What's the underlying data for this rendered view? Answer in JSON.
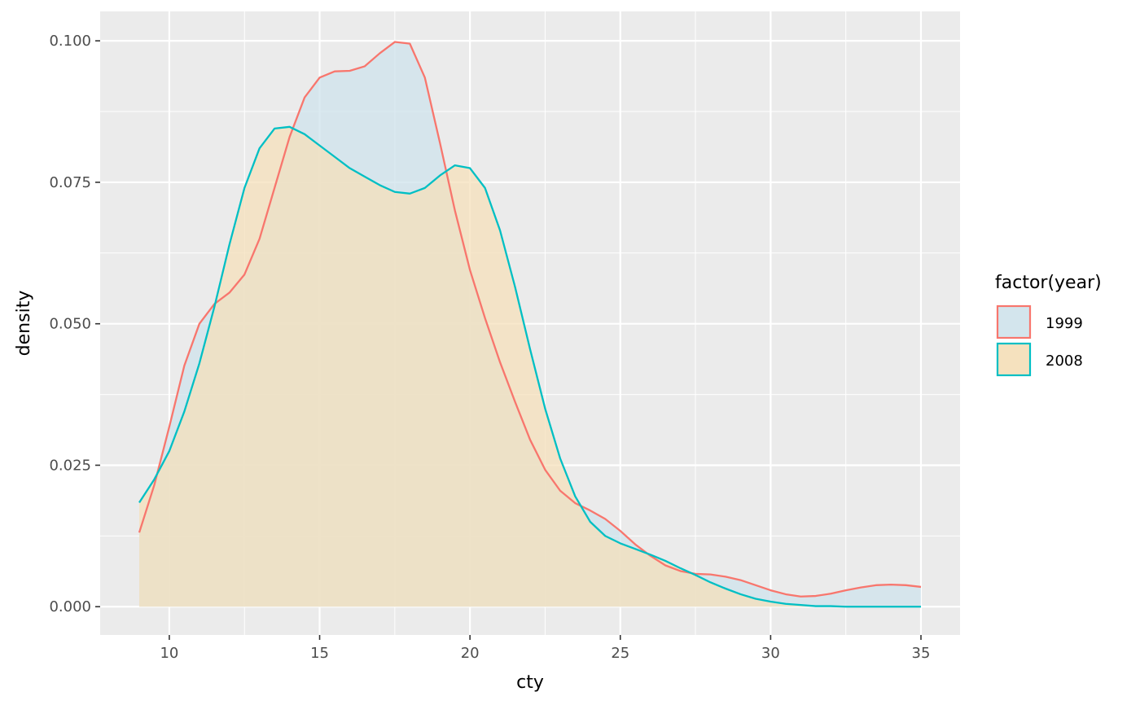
{
  "chart_data": {
    "type": "area",
    "chart_kind": "density",
    "title": "",
    "xlabel": "cty",
    "ylabel": "density",
    "xlim": [
      7.7,
      36.3
    ],
    "ylim": [
      -0.005,
      0.1052
    ],
    "x_ticks": [
      10,
      15,
      20,
      25,
      30,
      35
    ],
    "x_tick_labels": [
      "10",
      "15",
      "20",
      "25",
      "30",
      "35"
    ],
    "y_ticks": [
      0,
      0.025,
      0.05,
      0.075,
      0.1
    ],
    "y_tick_labels": [
      "0.000",
      "0.025",
      "0.050",
      "0.075",
      "0.100"
    ],
    "grid": true,
    "panel_background": "#EBEBEB",
    "legend": {
      "title": "factor(year)",
      "position": "right"
    },
    "series": [
      {
        "name": "1999",
        "line_color": "#F8766D",
        "fill_color": "#CFE3EC",
        "points": [
          [
            9.0,
            0.0131
          ],
          [
            9.5,
            0.0215
          ],
          [
            10.0,
            0.0318
          ],
          [
            10.5,
            0.0426
          ],
          [
            11.0,
            0.05
          ],
          [
            11.5,
            0.0535
          ],
          [
            12.0,
            0.0555
          ],
          [
            12.5,
            0.0587
          ],
          [
            13.0,
            0.065
          ],
          [
            13.5,
            0.074
          ],
          [
            14.0,
            0.083
          ],
          [
            14.5,
            0.09
          ],
          [
            15.0,
            0.0935
          ],
          [
            15.5,
            0.0946
          ],
          [
            16.0,
            0.0947
          ],
          [
            16.5,
            0.0955
          ],
          [
            17.0,
            0.0978
          ],
          [
            17.5,
            0.0998
          ],
          [
            18.0,
            0.0995
          ],
          [
            18.5,
            0.0935
          ],
          [
            19.0,
            0.082
          ],
          [
            19.5,
            0.07
          ],
          [
            20.0,
            0.0595
          ],
          [
            20.5,
            0.051
          ],
          [
            21.0,
            0.0432
          ],
          [
            21.5,
            0.0362
          ],
          [
            22.0,
            0.0295
          ],
          [
            22.5,
            0.0242
          ],
          [
            23.0,
            0.0205
          ],
          [
            23.5,
            0.0183
          ],
          [
            24.0,
            0.017
          ],
          [
            24.5,
            0.0155
          ],
          [
            25.0,
            0.0134
          ],
          [
            25.5,
            0.011
          ],
          [
            26.0,
            0.009
          ],
          [
            26.5,
            0.0073
          ],
          [
            27.0,
            0.0063
          ],
          [
            27.5,
            0.0058
          ],
          [
            28.0,
            0.0057
          ],
          [
            28.5,
            0.0053
          ],
          [
            29.0,
            0.0047
          ],
          [
            29.5,
            0.0038
          ],
          [
            30.0,
            0.0029
          ],
          [
            30.5,
            0.0022
          ],
          [
            31.0,
            0.0018
          ],
          [
            31.5,
            0.0019
          ],
          [
            32.0,
            0.0023
          ],
          [
            32.5,
            0.0029
          ],
          [
            33.0,
            0.0034
          ],
          [
            33.5,
            0.0038
          ],
          [
            34.0,
            0.0039
          ],
          [
            34.5,
            0.0038
          ],
          [
            35.0,
            0.0035
          ]
        ]
      },
      {
        "name": "2008",
        "line_color": "#00BFC4",
        "fill_color": "#F5DFB8",
        "points": [
          [
            9.0,
            0.0184
          ],
          [
            9.5,
            0.0225
          ],
          [
            10.0,
            0.0275
          ],
          [
            10.5,
            0.0345
          ],
          [
            11.0,
            0.043
          ],
          [
            11.5,
            0.053
          ],
          [
            12.0,
            0.064
          ],
          [
            12.5,
            0.074
          ],
          [
            13.0,
            0.081
          ],
          [
            13.5,
            0.0845
          ],
          [
            14.0,
            0.0848
          ],
          [
            14.5,
            0.0835
          ],
          [
            15.0,
            0.0815
          ],
          [
            15.5,
            0.0795
          ],
          [
            16.0,
            0.0775
          ],
          [
            16.5,
            0.076
          ],
          [
            17.0,
            0.0745
          ],
          [
            17.5,
            0.0733
          ],
          [
            18.0,
            0.073
          ],
          [
            18.5,
            0.074
          ],
          [
            19.0,
            0.0762
          ],
          [
            19.5,
            0.078
          ],
          [
            20.0,
            0.0775
          ],
          [
            20.5,
            0.074
          ],
          [
            21.0,
            0.0665
          ],
          [
            21.5,
            0.0565
          ],
          [
            22.0,
            0.0455
          ],
          [
            22.5,
            0.035
          ],
          [
            23.0,
            0.0262
          ],
          [
            23.5,
            0.0195
          ],
          [
            24.0,
            0.015
          ],
          [
            24.5,
            0.0125
          ],
          [
            25.0,
            0.0112
          ],
          [
            25.5,
            0.0102
          ],
          [
            26.0,
            0.0092
          ],
          [
            26.5,
            0.0081
          ],
          [
            27.0,
            0.0068
          ],
          [
            27.5,
            0.0056
          ],
          [
            28.0,
            0.0043
          ],
          [
            28.5,
            0.0032
          ],
          [
            29.0,
            0.0022
          ],
          [
            29.5,
            0.0014
          ],
          [
            30.0,
            0.0009
          ],
          [
            30.5,
            0.0005
          ],
          [
            31.0,
            0.0003
          ],
          [
            31.5,
            0.0001
          ],
          [
            32.0,
            0.0001
          ],
          [
            32.5,
            0.0
          ],
          [
            33.0,
            0.0
          ],
          [
            33.5,
            0.0
          ],
          [
            34.0,
            0.0
          ],
          [
            34.5,
            0.0
          ],
          [
            35.0,
            0.0
          ]
        ]
      }
    ]
  }
}
